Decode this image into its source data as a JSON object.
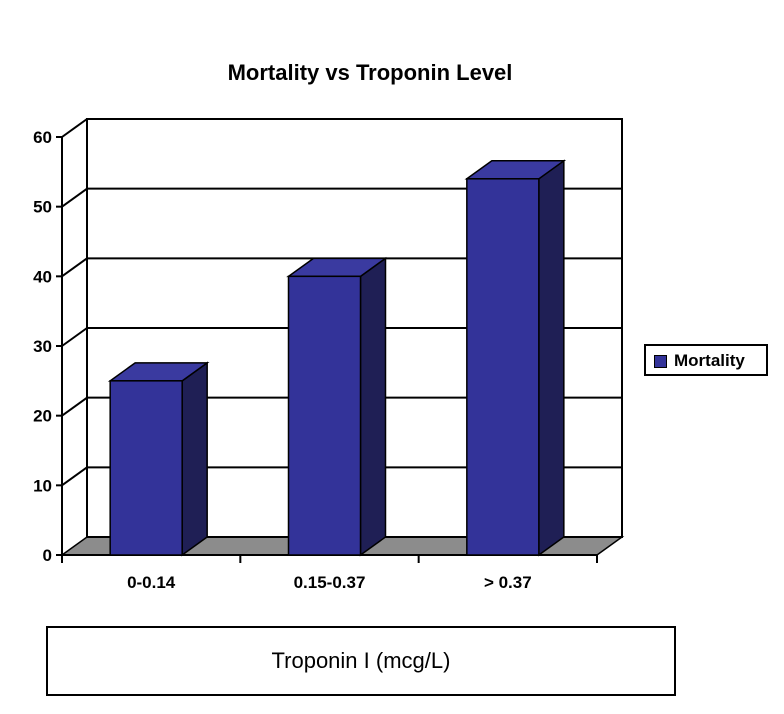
{
  "chart_data": {
    "type": "bar",
    "title": "Mortality vs Troponin Level",
    "xlabel": "Troponin I (mcg/L)",
    "ylabel": "",
    "categories": [
      "0-0.14",
      "0.15-0.37",
      "> 0.37"
    ],
    "series": [
      {
        "name": "Mortality",
        "values": [
          25,
          40,
          54
        ]
      }
    ],
    "ylim": [
      0,
      60
    ],
    "yticks": [
      0,
      10,
      20,
      30,
      40,
      50,
      60
    ],
    "grid": true,
    "legend": "right",
    "colors": {
      "bar_front": "#333399",
      "bar_side": "#1f1f55",
      "bar_top": "#3a3aa0",
      "floor": "#8c8c8c"
    }
  }
}
